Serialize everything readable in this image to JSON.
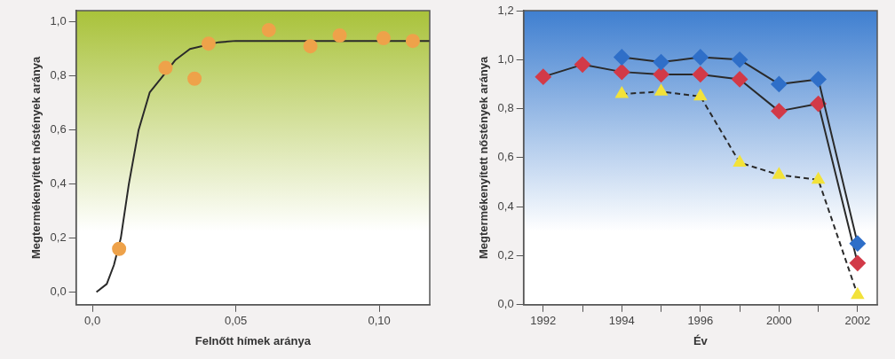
{
  "chart_data": [
    {
      "type": "scatter",
      "xlabel": "Felnőtt hímek aránya",
      "ylabel": "Megtermékenyített nőstények aránya",
      "xlim": [
        -0.0057,
        0.1176
      ],
      "ylim": [
        -0.047,
        1.042
      ],
      "xticks": [
        {
          "value": 0,
          "label": "0,0"
        },
        {
          "value": 0.05,
          "label": "0,05"
        },
        {
          "value": 0.1,
          "label": "0,10"
        }
      ],
      "yticks": [
        {
          "value": 0,
          "label": "0,0"
        },
        {
          "value": 0.2,
          "label": "0,2"
        },
        {
          "value": 0.4,
          "label": "0,4"
        },
        {
          "value": 0.6,
          "label": "0,6"
        },
        {
          "value": 0.8,
          "label": "0,8"
        },
        {
          "value": 1.0,
          "label": "1,0"
        }
      ],
      "grid": false,
      "legend": false,
      "series": [
        {
          "type": "scatter",
          "color": "#eea24a",
          "marker": "circle",
          "x": [
            0.0093,
            0.0255,
            0.0356,
            0.0405,
            0.0615,
            0.076,
            0.0862,
            0.1015,
            0.1117
          ],
          "values": [
            0.16,
            0.83,
            0.79,
            0.92,
            0.97,
            0.91,
            0.95,
            0.94,
            0.93
          ]
        },
        {
          "type": "line",
          "color": "#2a2a2a",
          "marker": "none",
          "line_style": "solid",
          "x": [
            0.0014,
            0.005,
            0.0075,
            0.0099,
            0.0127,
            0.0161,
            0.02,
            0.0246,
            0.029,
            0.034,
            0.044,
            0.05,
            0.07,
            0.1,
            0.1176
          ],
          "values": [
            0,
            0.03,
            0.1,
            0.2,
            0.4,
            0.6,
            0.74,
            0.8,
            0.86,
            0.9,
            0.925,
            0.93,
            0.93,
            0.93,
            0.93
          ]
        }
      ]
    },
    {
      "type": "line",
      "xlabel": "Év",
      "ylabel": "Megtermékenyített nőstények aránya",
      "categories": [
        "1992",
        null,
        "1994",
        null,
        "1996",
        null,
        "2000",
        null,
        "2002"
      ],
      "ylim": [
        0,
        1.2
      ],
      "yticks": [
        {
          "value": 0,
          "label": "0,0"
        },
        {
          "value": 0.2,
          "label": "0,2"
        },
        {
          "value": 0.4,
          "label": "0,4"
        },
        {
          "value": 0.6,
          "label": "0,6"
        },
        {
          "value": 0.8,
          "label": "0,8"
        },
        {
          "value": 1.0,
          "label": "1,0"
        },
        {
          "value": 1.2,
          "label": "1,2"
        }
      ],
      "grid": false,
      "legend": false,
      "series": [
        {
          "color": "#2f6fc8",
          "marker": "diamond",
          "line_style": "solid",
          "values": [
            null,
            null,
            1.01,
            0.99,
            1.01,
            1.0,
            0.9,
            0.92,
            0.25
          ]
        },
        {
          "color": "#d23a48",
          "marker": "diamond",
          "line_style": "solid",
          "values": [
            0.93,
            0.98,
            0.95,
            0.94,
            0.94,
            0.92,
            0.79,
            0.82,
            0.17
          ]
        },
        {
          "color": "#f2e23a",
          "marker": "triangle",
          "line_style": "dashed",
          "values": [
            null,
            null,
            0.86,
            0.87,
            0.85,
            0.58,
            0.53,
            0.51,
            0.04
          ]
        }
      ]
    }
  ]
}
